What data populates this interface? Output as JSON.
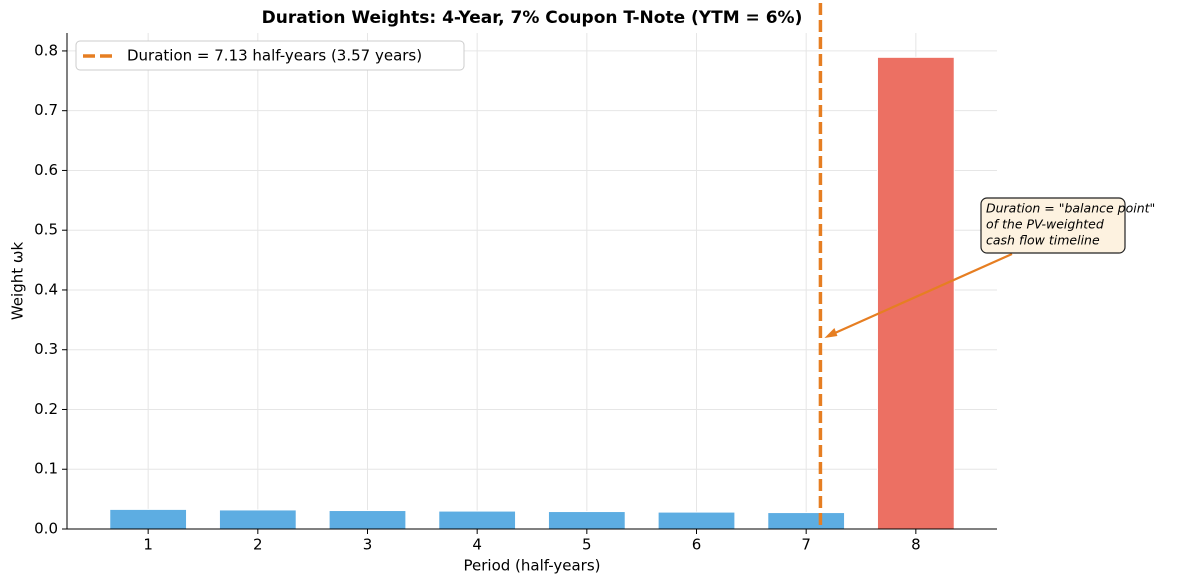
{
  "chart_data": {
    "type": "bar",
    "title": "Duration Weights: 4-Year, 7% Coupon T-Note (YTM = 6%)",
    "x_label": "Period (half-years)",
    "y_label": "Weight ωk",
    "x": [
      1,
      2,
      3,
      4,
      5,
      6,
      7,
      8
    ],
    "values": [
      0.0328,
      0.0319,
      0.0309,
      0.03,
      0.0292,
      0.0283,
      0.0275,
      0.7893
    ],
    "colors": [
      "#5dade2",
      "#5dade2",
      "#5dade2",
      "#5dade2",
      "#5dade2",
      "#5dade2",
      "#5dade2",
      "#ec7063"
    ],
    "bar_width": 0.7,
    "xlim": [
      0.26,
      8.74
    ],
    "ylim": [
      0,
      0.83
    ],
    "xticks": [
      1,
      2,
      3,
      4,
      5,
      6,
      7,
      8
    ],
    "yticks": [
      {
        "value": 0,
        "label": "0.0"
      },
      0.1,
      0.2,
      0.3,
      0.4,
      0.5,
      0.6,
      0.7,
      0.8
    ],
    "grid": true,
    "legend": "upper left",
    "vlines": [
      {
        "name": "Duration = 7.13 half-years (3.57 years)",
        "x": 7.13,
        "color": "#e67e22"
      }
    ],
    "annotation": {
      "lines": [
        "Duration = \"balance point\"",
        "of the PV-weighted",
        "cash flow timeline"
      ],
      "color": "#e67e22"
    }
  }
}
